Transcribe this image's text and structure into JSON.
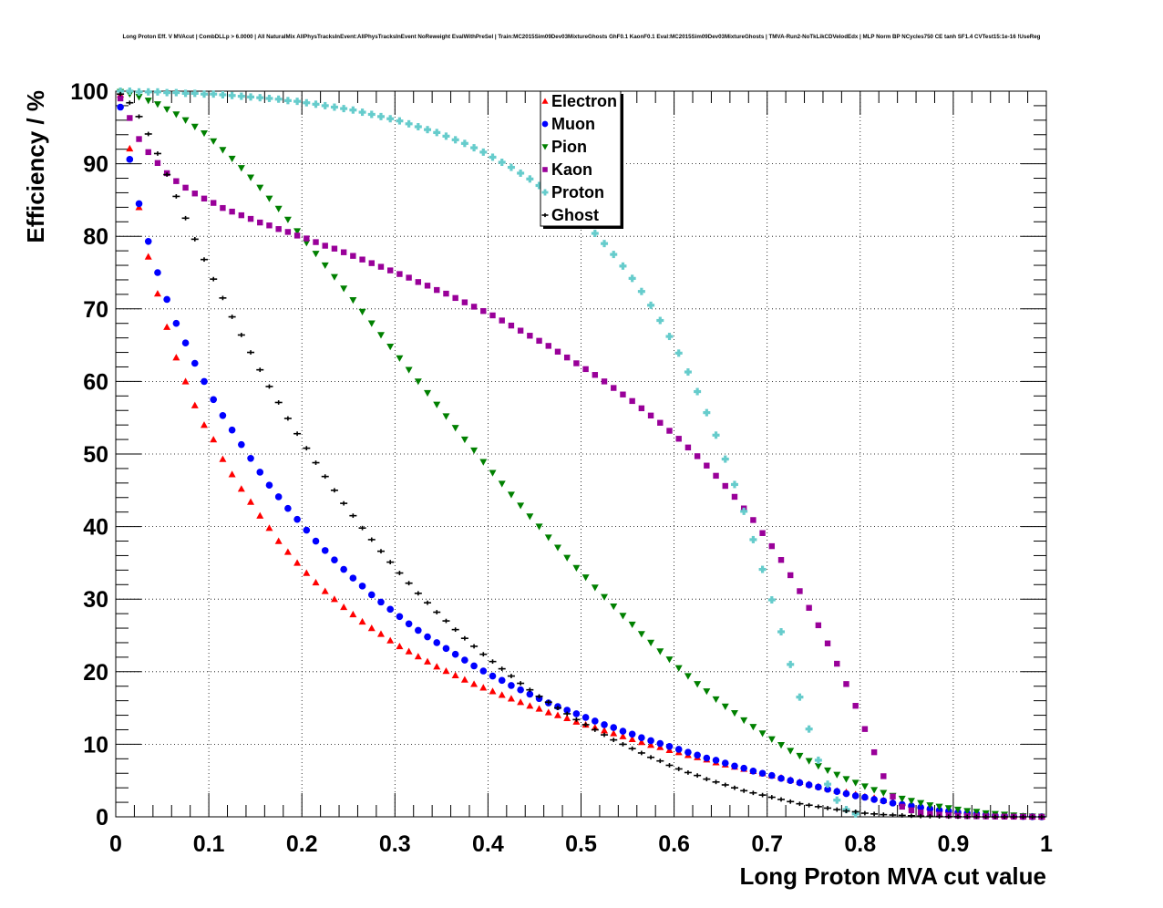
{
  "chart_data": {
    "type": "scatter",
    "title": "Long Proton Eff. V MVAcut | CombDLLp > 6.0000 | All NaturalMix AllPhysTracksInEvent:AllPhysTracksInEvent NoReweight EvalWithPreSel | Train:MC2015Sim09Dev03MixtureGhosts GhF0.1 KaonF0.1 Eval:MC2015Sim09Dev03MixtureGhosts | TMVA-Run2-NoTkLikCDVelodEdx | MLP Norm BP NCycles750 CE tanh SF1.4 CVTest15:1e-16 !UseReg",
    "xlabel": "Long Proton MVA cut value",
    "ylabel": "Efficiency / %",
    "xlim": [
      0,
      1
    ],
    "ylim": [
      0,
      100
    ],
    "x_ticks": [
      "0",
      "0.1",
      "0.2",
      "0.3",
      "0.4",
      "0.5",
      "0.6",
      "0.7",
      "0.8",
      "0.9",
      "1"
    ],
    "y_ticks": [
      "0",
      "10",
      "20",
      "30",
      "40",
      "50",
      "60",
      "70",
      "80",
      "90",
      "100"
    ],
    "grid": true,
    "legend_position": "top-center",
    "x_step": 0.01,
    "series": [
      {
        "name": "Electron",
        "marker": "triangle-up",
        "color": "#ff0000",
        "values": [
          99.5,
          92.1,
          84.0,
          77.2,
          72.1,
          67.5,
          63.3,
          60.0,
          56.7,
          54.0,
          52.0,
          49.3,
          47.2,
          45.2,
          43.4,
          41.5,
          39.8,
          38.0,
          36.5,
          35.0,
          33.6,
          32.3,
          31.1,
          30.0,
          28.9,
          27.9,
          26.9,
          26.0,
          25.2,
          24.3,
          23.5,
          22.8,
          22.1,
          21.4,
          20.7,
          20.1,
          19.5,
          18.9,
          18.3,
          17.8,
          17.3,
          16.8,
          16.3,
          15.8,
          15.3,
          14.9,
          14.4,
          14.0,
          13.6,
          13.1,
          12.7,
          12.3,
          11.9,
          11.5,
          11.1,
          10.7,
          10.3,
          9.9,
          9.6,
          9.2,
          8.9,
          8.5,
          8.2,
          7.9,
          7.5,
          7.2,
          6.9,
          6.6,
          6.3,
          6.0,
          5.7,
          5.4,
          5.1,
          4.8,
          4.5,
          4.2,
          3.9,
          3.6,
          3.4,
          3.1,
          2.8,
          2.6,
          2.3,
          2.1,
          1.9,
          1.7,
          1.5,
          1.3,
          1.1,
          0.9,
          0.8,
          0.6,
          0.5,
          0.4,
          0.3,
          0.2,
          0.15,
          0.1,
          0.05,
          0.02
        ]
      },
      {
        "name": "Muon",
        "marker": "circle",
        "color": "#0000ff",
        "values": [
          97.8,
          90.6,
          84.5,
          79.3,
          75.0,
          71.3,
          68.0,
          65.3,
          62.5,
          60.0,
          57.5,
          55.3,
          53.3,
          51.3,
          49.4,
          47.5,
          45.7,
          44.1,
          42.5,
          41.0,
          39.5,
          38.0,
          36.7,
          35.4,
          34.1,
          32.9,
          31.8,
          30.6,
          29.6,
          28.6,
          27.6,
          26.6,
          25.7,
          24.8,
          24.0,
          23.2,
          22.4,
          21.6,
          20.8,
          20.1,
          19.4,
          18.8,
          18.1,
          17.5,
          16.9,
          16.3,
          15.7,
          15.2,
          14.7,
          14.2,
          13.7,
          13.2,
          12.7,
          12.3,
          11.8,
          11.4,
          10.9,
          10.5,
          10.1,
          9.7,
          9.3,
          8.9,
          8.5,
          8.1,
          7.8,
          7.4,
          7.0,
          6.7,
          6.3,
          6.0,
          5.7,
          5.3,
          5.0,
          4.7,
          4.4,
          4.1,
          3.8,
          3.5,
          3.2,
          2.9,
          2.7,
          2.4,
          2.2,
          1.9,
          1.7,
          1.5,
          1.3,
          1.1,
          0.9,
          0.8,
          0.6,
          0.5,
          0.4,
          0.3,
          0.2,
          0.15,
          0.1,
          0.05,
          0.02,
          0.01
        ]
      },
      {
        "name": "Pion",
        "marker": "triangle-down",
        "color": "#008000",
        "values": [
          99.9,
          99.6,
          99.2,
          98.7,
          98.2,
          97.5,
          96.8,
          96.0,
          95.1,
          94.2,
          93.1,
          91.9,
          90.7,
          89.4,
          88.1,
          86.7,
          85.2,
          83.8,
          82.3,
          80.7,
          79.1,
          77.6,
          76.0,
          74.4,
          72.8,
          71.2,
          69.6,
          68.0,
          66.4,
          64.8,
          63.2,
          61.6,
          60.0,
          58.4,
          56.8,
          55.2,
          53.6,
          52.0,
          50.5,
          48.9,
          47.4,
          45.9,
          44.4,
          42.9,
          41.4,
          40.0,
          38.5,
          37.1,
          35.7,
          34.3,
          33.0,
          31.6,
          30.3,
          29.0,
          27.7,
          26.5,
          25.2,
          24.0,
          22.8,
          21.7,
          20.5,
          19.4,
          18.3,
          17.3,
          16.2,
          15.2,
          14.3,
          13.3,
          12.4,
          11.5,
          10.7,
          9.9,
          9.1,
          8.4,
          7.7,
          7.0,
          6.4,
          5.8,
          5.2,
          4.7,
          4.2,
          3.7,
          3.3,
          2.9,
          2.5,
          2.2,
          1.9,
          1.6,
          1.4,
          1.2,
          1.0,
          0.8,
          0.7,
          0.5,
          0.4,
          0.3,
          0.2,
          0.1,
          0.05,
          0.02
        ]
      },
      {
        "name": "Kaon",
        "marker": "square",
        "color": "#990099",
        "values": [
          99.0,
          96.3,
          93.4,
          91.6,
          90.1,
          88.7,
          87.6,
          86.7,
          85.9,
          85.2,
          84.6,
          83.9,
          83.4,
          82.9,
          82.4,
          81.9,
          81.5,
          81.0,
          80.6,
          80.1,
          79.7,
          79.2,
          78.7,
          78.3,
          77.8,
          77.3,
          76.8,
          76.3,
          75.8,
          75.3,
          74.8,
          74.3,
          73.7,
          73.2,
          72.6,
          72.1,
          71.5,
          70.9,
          70.3,
          69.7,
          69.1,
          68.4,
          67.7,
          67.0,
          66.3,
          65.6,
          64.9,
          64.1,
          63.3,
          62.5,
          61.7,
          60.9,
          60.0,
          59.1,
          58.2,
          57.3,
          56.3,
          55.3,
          54.3,
          53.2,
          52.1,
          50.9,
          49.7,
          48.4,
          47.0,
          45.6,
          44.1,
          42.5,
          40.9,
          39.1,
          37.3,
          35.4,
          33.3,
          31.1,
          28.8,
          26.4,
          23.9,
          21.1,
          18.3,
          15.3,
          12.1,
          8.9,
          5.6,
          2.8,
          1.4,
          0.9,
          0.6,
          0.4,
          0.3,
          0.2,
          0.15,
          0.1,
          0.08,
          0.06,
          0.04,
          0.03,
          0.02,
          0.01,
          0.01,
          0.0
        ]
      },
      {
        "name": "Proton",
        "marker": "cross",
        "color": "#66cccc",
        "values": [
          100.0,
          100.0,
          99.9,
          99.9,
          99.9,
          99.8,
          99.8,
          99.7,
          99.7,
          99.6,
          99.6,
          99.5,
          99.4,
          99.3,
          99.2,
          99.1,
          99.0,
          98.9,
          98.7,
          98.6,
          98.4,
          98.2,
          98.0,
          97.8,
          97.6,
          97.4,
          97.1,
          96.8,
          96.5,
          96.2,
          95.9,
          95.5,
          95.1,
          94.7,
          94.3,
          93.8,
          93.3,
          92.8,
          92.2,
          91.6,
          90.9,
          90.2,
          89.5,
          88.7,
          87.9,
          87.0,
          86.1,
          85.1,
          84.0,
          82.9,
          81.7,
          80.4,
          79.0,
          77.5,
          75.9,
          74.2,
          72.4,
          70.5,
          68.4,
          66.2,
          63.9,
          61.3,
          58.6,
          55.7,
          52.6,
          49.3,
          45.8,
          42.1,
          38.2,
          34.1,
          29.9,
          25.5,
          21.0,
          16.5,
          12.1,
          7.8,
          4.5,
          2.3,
          1.0,
          0.4
        ]
      },
      {
        "name": "Ghost",
        "marker": "plus",
        "color": "#000000",
        "values": [
          99.6,
          98.4,
          96.5,
          94.1,
          91.4,
          88.5,
          85.5,
          82.5,
          79.6,
          76.8,
          74.1,
          71.5,
          68.9,
          66.4,
          64.0,
          61.6,
          59.3,
          57.1,
          54.9,
          52.8,
          50.8,
          48.8,
          46.9,
          45.0,
          43.2,
          41.5,
          39.8,
          38.2,
          36.6,
          35.1,
          33.6,
          32.2,
          30.8,
          29.5,
          28.2,
          27.0,
          25.8,
          24.6,
          23.5,
          22.4,
          21.4,
          20.4,
          19.4,
          18.4,
          17.5,
          16.6,
          15.8,
          15.0,
          14.2,
          13.4,
          12.7,
          12.0,
          11.3,
          10.6,
          10.0,
          9.4,
          8.8,
          8.2,
          7.7,
          7.1,
          6.6,
          6.1,
          5.7,
          5.2,
          4.8,
          4.4,
          4.0,
          3.6,
          3.3,
          3.0,
          2.7,
          2.4,
          2.1,
          1.8,
          1.6,
          1.4,
          1.2,
          1.0,
          0.8,
          0.7,
          0.5,
          0.4,
          0.3,
          0.25,
          0.2,
          0.15,
          0.1,
          0.07,
          0.05,
          0.03,
          0.02,
          0.01,
          0.01,
          0.0,
          0.0,
          0.0,
          0.0,
          0.0,
          0.0,
          0.0
        ]
      }
    ]
  }
}
